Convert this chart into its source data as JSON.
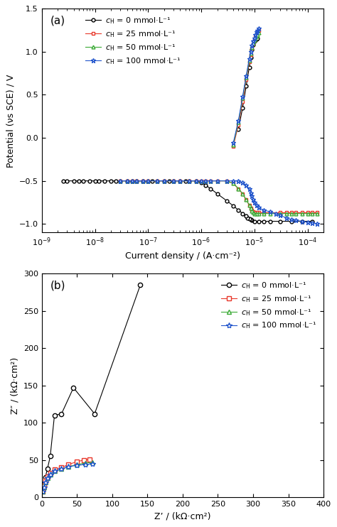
{
  "panel_a": {
    "title": "(a)",
    "xlabel": "Current density / (A·cm⁻²)",
    "ylabel": "Potential (νs SCE) / V",
    "xlim": [
      1e-09,
      0.0002
    ],
    "ylim": [
      -1.1,
      1.5
    ],
    "yticks": [
      -1.0,
      -0.5,
      0.0,
      0.5,
      1.0,
      1.5
    ],
    "series": [
      {
        "label": "$c_\\mathrm{H}$ = 0 mmol·L⁻¹",
        "color": "#000000",
        "marker": "o",
        "markersize": 3.5,
        "markerfacecolor": "white",
        "x": [
          0.00012,
          8e-05,
          5e-05,
          3e-05,
          2e-05,
          1.5e-05,
          1.2e-05,
          1e-05,
          9e-06,
          8.5e-06,
          8e-06,
          7.5e-06,
          7e-06,
          6e-06,
          5e-06,
          4e-06,
          3e-06,
          2e-06,
          1.5e-06,
          1.2e-06,
          1e-06,
          8e-07,
          6e-07,
          5e-07,
          4e-07,
          3e-07,
          2.5e-07,
          2e-07,
          1.5e-07,
          1.2e-07,
          1e-07,
          8e-08,
          6e-08,
          5e-08,
          4e-08,
          3e-08,
          2.5e-08,
          2e-08,
          1.5e-08,
          1.2e-08,
          1e-08,
          8e-09,
          6e-09,
          5e-09,
          4e-09,
          3e-09,
          2.5e-09
        ],
        "y": [
          -0.97,
          -0.97,
          -0.97,
          -0.97,
          -0.97,
          -0.97,
          -0.97,
          -0.97,
          -0.96,
          -0.95,
          -0.94,
          -0.93,
          -0.91,
          -0.88,
          -0.84,
          -0.79,
          -0.73,
          -0.65,
          -0.59,
          -0.55,
          -0.52,
          -0.5,
          -0.5,
          -0.5,
          -0.5,
          -0.5,
          -0.5,
          -0.5,
          -0.5,
          -0.5,
          -0.5,
          -0.5,
          -0.5,
          -0.5,
          -0.5,
          -0.5,
          -0.5,
          -0.5,
          -0.5,
          -0.5,
          -0.5,
          -0.5,
          -0.5,
          -0.5,
          -0.5,
          -0.5,
          -0.5
        ],
        "anodic_x": [
          5e-06,
          6e-06,
          7e-06,
          8e-06,
          8.5e-06,
          9e-06,
          9.5e-06,
          1e-05,
          1.05e-05,
          1.1e-05,
          1.15e-05
        ],
        "anodic_y": [
          0.1,
          0.35,
          0.6,
          0.82,
          0.93,
          1.02,
          1.08,
          1.12,
          1.14,
          1.15,
          1.16
        ]
      },
      {
        "label": "$c_\\mathrm{H}$ = 25 mmol·L⁻¹",
        "color": "#e8372a",
        "marker": "s",
        "markersize": 3.5,
        "markerfacecolor": "white",
        "x": [
          0.00015,
          0.00012,
          0.0001,
          8e-05,
          6e-05,
          5e-05,
          4e-05,
          3e-05,
          2e-05,
          1.5e-05,
          1.2e-05,
          1.1e-05,
          1e-05,
          9.5e-06,
          9e-06,
          8.5e-06,
          8e-06,
          7e-06,
          6e-06,
          5e-06,
          4e-06,
          3e-06,
          2e-06,
          1.5e-06,
          1.2e-06,
          1e-06,
          8e-07,
          6e-07,
          4e-07,
          3e-07,
          2e-07,
          1.5e-07,
          1e-07,
          8e-08,
          6e-08,
          5e-08,
          4e-08,
          3e-08
        ],
        "y": [
          -0.87,
          -0.87,
          -0.87,
          -0.87,
          -0.87,
          -0.87,
          -0.87,
          -0.87,
          -0.87,
          -0.87,
          -0.87,
          -0.87,
          -0.87,
          -0.86,
          -0.84,
          -0.82,
          -0.78,
          -0.72,
          -0.65,
          -0.59,
          -0.53,
          -0.5,
          -0.5,
          -0.5,
          -0.5,
          -0.5,
          -0.5,
          -0.5,
          -0.5,
          -0.5,
          -0.5,
          -0.5,
          -0.5,
          -0.5,
          -0.5,
          -0.5,
          -0.5,
          -0.5
        ],
        "anodic_x": [
          4e-06,
          5e-06,
          6e-06,
          7e-06,
          8e-06,
          8.5e-06,
          9e-06,
          9.5e-06,
          1e-05,
          1.05e-05,
          1.1e-05,
          1.15e-05,
          1.2e-05
        ],
        "anodic_y": [
          -0.1,
          0.15,
          0.42,
          0.68,
          0.88,
          0.97,
          1.04,
          1.09,
          1.13,
          1.17,
          1.2,
          1.23,
          1.25
        ]
      },
      {
        "label": "$c_\\mathrm{H}$ = 50 mmol·L⁻¹",
        "color": "#3aaa35",
        "marker": "^",
        "markersize": 3.5,
        "markerfacecolor": "white",
        "x": [
          0.00015,
          0.00012,
          0.0001,
          8e-05,
          6e-05,
          5e-05,
          4e-05,
          3e-05,
          2e-05,
          1.5e-05,
          1.2e-05,
          1.1e-05,
          1e-05,
          9.5e-06,
          9e-06,
          8.5e-06,
          8e-06,
          7e-06,
          6e-06,
          5e-06,
          4e-06,
          3e-06,
          2e-06,
          1.5e-06,
          1.2e-06,
          1e-06,
          8e-07,
          6e-07,
          4e-07,
          3e-07,
          2e-07,
          1.5e-07,
          1e-07,
          8e-08,
          6e-08,
          5e-08,
          4e-08,
          3e-08
        ],
        "y": [
          -0.88,
          -0.88,
          -0.88,
          -0.88,
          -0.88,
          -0.88,
          -0.88,
          -0.88,
          -0.88,
          -0.88,
          -0.88,
          -0.88,
          -0.88,
          -0.87,
          -0.85,
          -0.82,
          -0.78,
          -0.72,
          -0.65,
          -0.59,
          -0.53,
          -0.5,
          -0.5,
          -0.5,
          -0.5,
          -0.5,
          -0.5,
          -0.5,
          -0.5,
          -0.5,
          -0.5,
          -0.5,
          -0.5,
          -0.5,
          -0.5,
          -0.5,
          -0.5,
          -0.5
        ],
        "anodic_x": [
          4e-06,
          5e-06,
          6e-06,
          7e-06,
          8e-06,
          8.5e-06,
          9e-06,
          9.5e-06,
          1e-05,
          1.05e-05,
          1.1e-05,
          1.15e-05,
          1.2e-05
        ],
        "anodic_y": [
          -0.08,
          0.18,
          0.46,
          0.7,
          0.9,
          0.98,
          1.05,
          1.1,
          1.13,
          1.16,
          1.18,
          1.2,
          1.22
        ]
      },
      {
        "label": "$c_\\mathrm{H}$ = 100 mmol·L⁻¹",
        "color": "#2255cc",
        "marker": "*",
        "markersize": 5,
        "markerfacecolor": "white",
        "x": [
          0.00015,
          0.00012,
          0.0001,
          8e-05,
          6e-05,
          5e-05,
          4e-05,
          3e-05,
          2.5e-05,
          2e-05,
          1.5e-05,
          1.2e-05,
          1.1e-05,
          1e-05,
          9.5e-06,
          9e-06,
          8.5e-06,
          8e-06,
          7e-06,
          6e-06,
          5e-06,
          4e-06,
          3e-06,
          2e-06,
          1.5e-06,
          1.2e-06,
          1e-06,
          8e-07,
          6e-07,
          4e-07,
          3e-07,
          2e-07,
          1.5e-07,
          1e-07,
          8e-08,
          6e-08,
          5e-08,
          4e-08,
          3e-08
        ],
        "y": [
          -1.0,
          -0.99,
          -0.98,
          -0.97,
          -0.96,
          -0.95,
          -0.93,
          -0.9,
          -0.88,
          -0.86,
          -0.84,
          -0.81,
          -0.78,
          -0.75,
          -0.72,
          -0.68,
          -0.64,
          -0.59,
          -0.55,
          -0.52,
          -0.5,
          -0.5,
          -0.5,
          -0.5,
          -0.5,
          -0.5,
          -0.5,
          -0.5,
          -0.5,
          -0.5,
          -0.5,
          -0.5,
          -0.5,
          -0.5,
          -0.5,
          -0.5,
          -0.5,
          -0.5,
          -0.5
        ],
        "anodic_x": [
          4e-06,
          5e-06,
          6e-06,
          7e-06,
          8e-06,
          8.5e-06,
          9e-06,
          9.5e-06,
          1e-05,
          1.05e-05,
          1.1e-05,
          1.15e-05,
          1.2e-05
        ],
        "anodic_y": [
          -0.06,
          0.2,
          0.48,
          0.72,
          0.92,
          1.0,
          1.07,
          1.12,
          1.16,
          1.2,
          1.23,
          1.25,
          1.27
        ]
      }
    ]
  },
  "panel_b": {
    "title": "(b)",
    "xlabel": "Z’ / (kΩ·cm²)",
    "ylabel": "Z″ / (kΩ·cm²)",
    "xlim": [
      0,
      400
    ],
    "ylim": [
      0,
      300
    ],
    "xticks": [
      0,
      50,
      100,
      150,
      200,
      250,
      300,
      350,
      400
    ],
    "yticks": [
      0,
      50,
      100,
      150,
      200,
      250,
      300
    ],
    "series": [
      {
        "label": "$c_\\mathrm{H}$ = 0 mmol·L⁻¹",
        "color": "#000000",
        "marker": "o",
        "markersize": 4.5,
        "markerfacecolor": "white",
        "x": [
          1,
          3,
          5,
          8,
          12,
          18,
          28,
          45,
          75,
          140
        ],
        "y": [
          10,
          18,
          27,
          38,
          55,
          110,
          112,
          147,
          112,
          285
        ]
      },
      {
        "label": "$c_\\mathrm{H}$ = 25 mmol·L⁻¹",
        "color": "#e8372a",
        "marker": "s",
        "markersize": 4.5,
        "markerfacecolor": "white",
        "x": [
          1,
          3,
          5,
          8,
          12,
          18,
          28,
          38,
          50,
          60,
          68
        ],
        "y": [
          8,
          15,
          22,
          28,
          33,
          37,
          40,
          44,
          48,
          50,
          51
        ]
      },
      {
        "label": "$c_\\mathrm{H}$ = 50 mmol·L⁻¹",
        "color": "#3aaa35",
        "marker": "^",
        "markersize": 4.5,
        "markerfacecolor": "white",
        "x": [
          1,
          3,
          5,
          8,
          12,
          18,
          28,
          38,
          50,
          62,
          72
        ],
        "y": [
          8,
          14,
          20,
          26,
          31,
          35,
          38,
          41,
          44,
          46,
          47
        ]
      },
      {
        "label": "$c_\\mathrm{H}$ = 100 mmol·L⁻¹",
        "color": "#2255cc",
        "marker": "*",
        "markersize": 6,
        "markerfacecolor": "white",
        "x": [
          1,
          3,
          5,
          8,
          12,
          18,
          28,
          38,
          50,
          62,
          72
        ],
        "y": [
          8,
          14,
          20,
          26,
          31,
          35,
          38,
          41,
          43,
          44,
          45
        ]
      }
    ]
  }
}
